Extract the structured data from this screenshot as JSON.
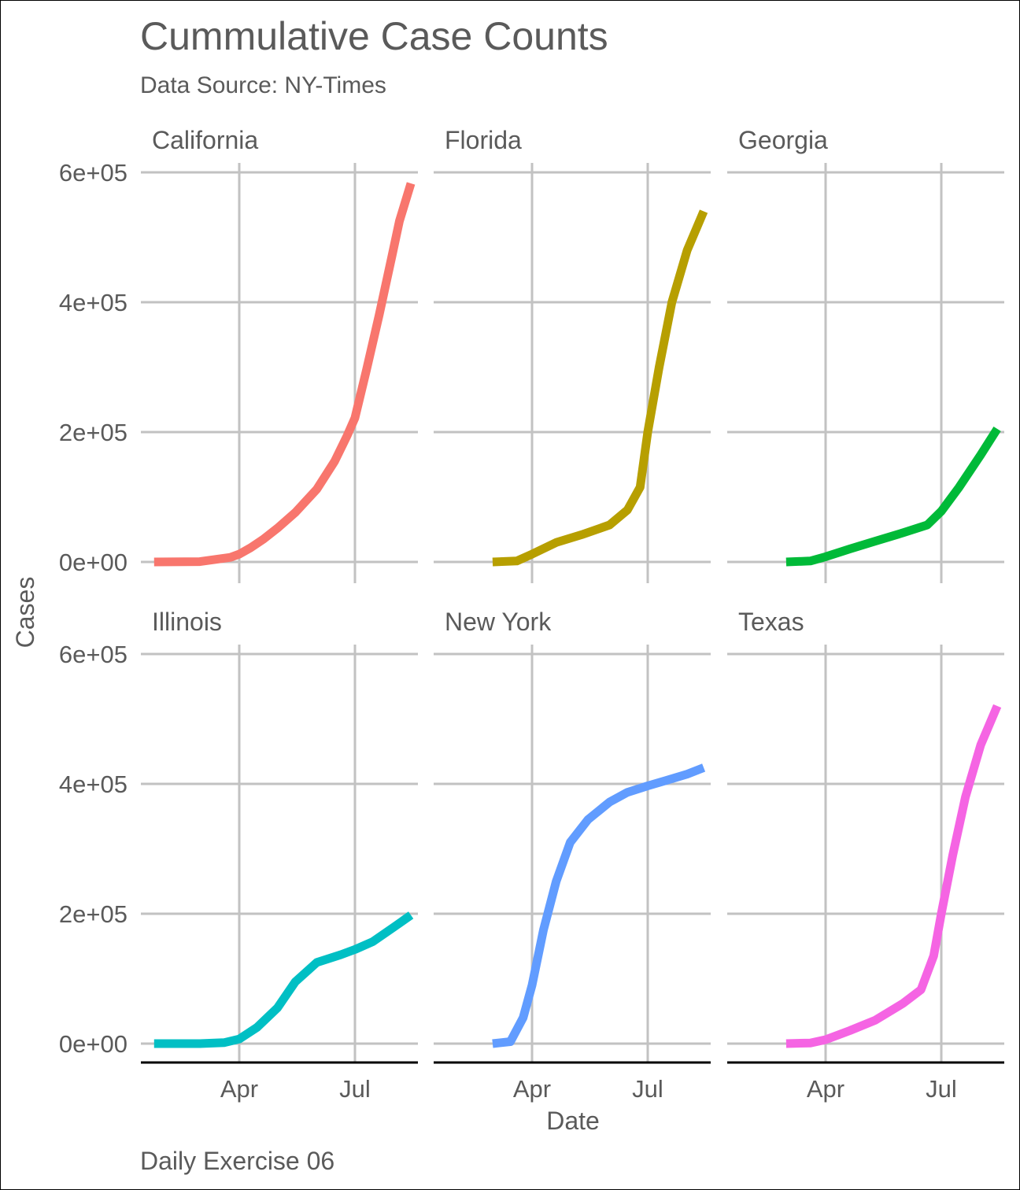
{
  "chart_data": {
    "type": "line",
    "title": "Cummulative Case Counts",
    "subtitle": "Data Source: NY-Times",
    "xlabel": "Date",
    "ylabel": "Cases",
    "caption": "Daily Exercise 06",
    "x_ticks": [
      "Apr",
      "Jul"
    ],
    "x_tick_dates": [
      "2020-04-01",
      "2020-07-01"
    ],
    "y_ticks": [
      "0e+00",
      "2e+05",
      "4e+05",
      "6e+05"
    ],
    "y_tick_values": [
      0,
      200000,
      400000,
      600000
    ],
    "grid": true,
    "legend": "none",
    "panels": [
      {
        "name": "California",
        "color": "#F8766D",
        "x": [
          "2020-01-25",
          "2020-03-01",
          "2020-03-25",
          "2020-04-01",
          "2020-04-10",
          "2020-04-20",
          "2020-05-01",
          "2020-05-15",
          "2020-06-01",
          "2020-06-15",
          "2020-06-25",
          "2020-07-01",
          "2020-07-10",
          "2020-07-20",
          "2020-07-30",
          "2020-08-05",
          "2020-08-14"
        ],
        "values": [
          0,
          500,
          7000,
          12000,
          22000,
          35000,
          52000,
          76000,
          112000,
          155000,
          195000,
          222000,
          295000,
          380000,
          470000,
          525000,
          583000
        ]
      },
      {
        "name": "Florida",
        "color": "#B79F00",
        "x": [
          "2020-03-01",
          "2020-03-20",
          "2020-04-01",
          "2020-04-20",
          "2020-05-10",
          "2020-06-01",
          "2020-06-15",
          "2020-06-25",
          "2020-07-01",
          "2020-07-10",
          "2020-07-20",
          "2020-08-01",
          "2020-08-14"
        ],
        "values": [
          0,
          1500,
          12000,
          30000,
          42000,
          57000,
          80000,
          115000,
          200000,
          300000,
          400000,
          480000,
          540000
        ]
      },
      {
        "name": "Georgia",
        "color": "#00BA38",
        "x": [
          "2020-03-01",
          "2020-03-20",
          "2020-04-01",
          "2020-04-20",
          "2020-05-10",
          "2020-06-01",
          "2020-06-20",
          "2020-07-01",
          "2020-07-15",
          "2020-08-01",
          "2020-08-14"
        ],
        "values": [
          0,
          1500,
          8000,
          20000,
          32000,
          45000,
          57000,
          78000,
          115000,
          165000,
          205000
        ]
      },
      {
        "name": "Illinois",
        "color": "#00BFC4",
        "x": [
          "2020-01-25",
          "2020-03-01",
          "2020-03-20",
          "2020-04-01",
          "2020-04-15",
          "2020-05-01",
          "2020-05-15",
          "2020-06-01",
          "2020-06-20",
          "2020-07-01",
          "2020-07-15",
          "2020-08-01",
          "2020-08-14"
        ],
        "values": [
          0,
          0,
          1500,
          7000,
          25000,
          55000,
          95000,
          125000,
          137000,
          145000,
          157000,
          180000,
          198000
        ]
      },
      {
        "name": "New York",
        "color": "#619CFF",
        "x": [
          "2020-03-01",
          "2020-03-15",
          "2020-03-25",
          "2020-04-01",
          "2020-04-10",
          "2020-04-20",
          "2020-05-01",
          "2020-05-15",
          "2020-06-01",
          "2020-06-15",
          "2020-07-01",
          "2020-07-15",
          "2020-08-01",
          "2020-08-14"
        ],
        "values": [
          0,
          3000,
          40000,
          90000,
          175000,
          250000,
          310000,
          345000,
          372000,
          387000,
          397000,
          405000,
          415000,
          425000
        ]
      },
      {
        "name": "Texas",
        "color": "#F564E3",
        "x": [
          "2020-03-01",
          "2020-03-20",
          "2020-04-01",
          "2020-04-20",
          "2020-05-10",
          "2020-06-01",
          "2020-06-15",
          "2020-06-25",
          "2020-07-01",
          "2020-07-10",
          "2020-07-20",
          "2020-08-01",
          "2020-08-14"
        ],
        "values": [
          0,
          1000,
          6000,
          20000,
          36000,
          62000,
          83000,
          135000,
          200000,
          290000,
          380000,
          460000,
          520000
        ]
      }
    ]
  }
}
